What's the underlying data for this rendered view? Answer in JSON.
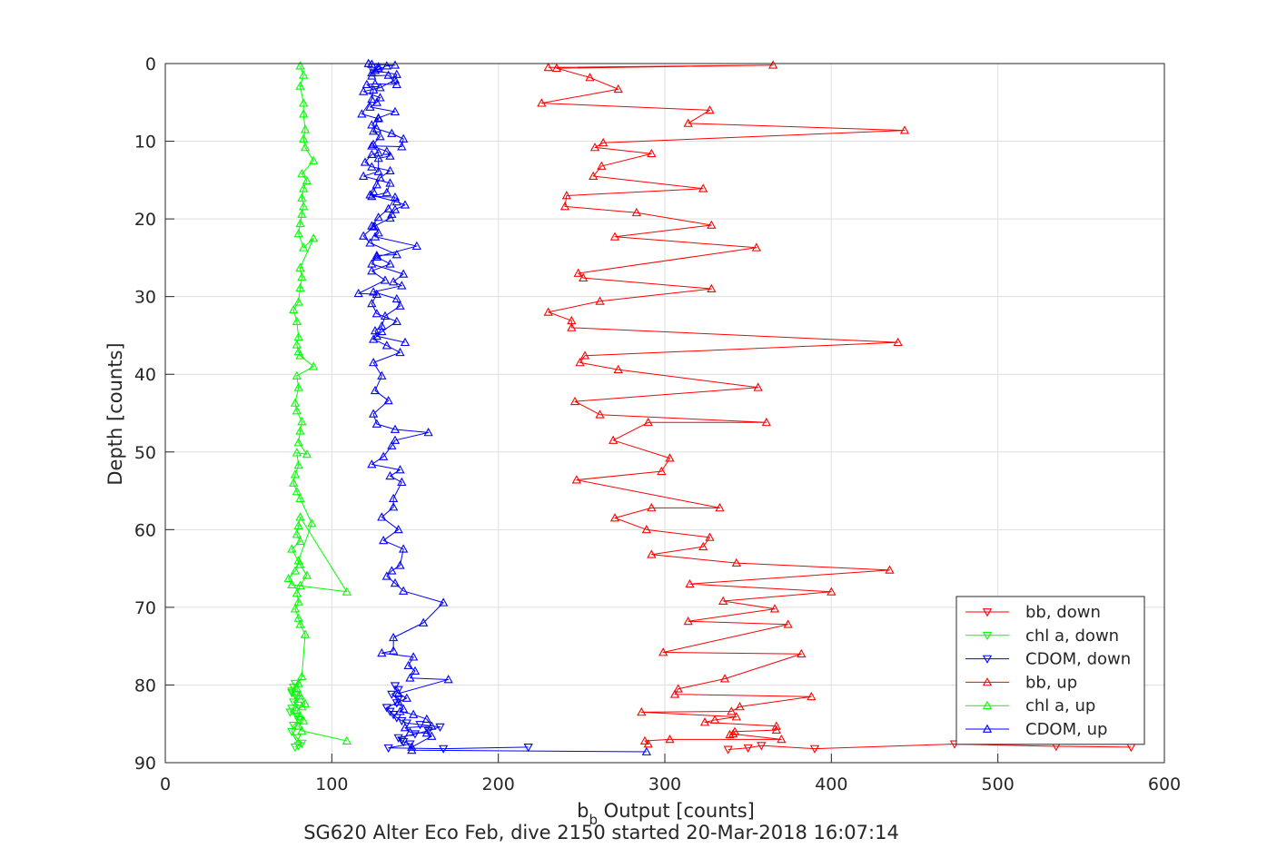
{
  "chart_data": {
    "type": "line",
    "xlabel_main": "b",
    "xlabel_sub": "b",
    "xlabel_rest": " Output [counts]",
    "ylabel": "Depth [counts]",
    "subtitle": "SG620 Alter Eco Feb, dive 2150 started 20-Mar-2018 16:07:14",
    "xlim": [
      0,
      600
    ],
    "ylim": [
      0,
      90
    ],
    "y_reversed": true,
    "grid": true,
    "legend_position": "bottom-right",
    "x_ticks": [
      "0",
      "100",
      "200",
      "300",
      "400",
      "500",
      "600"
    ],
    "y_ticks": [
      "0",
      "10",
      "20",
      "30",
      "40",
      "50",
      "60",
      "70",
      "80",
      "90"
    ],
    "series": [
      {
        "name": "bb, down",
        "color": "#ff0000",
        "marker": "triangle-down",
        "x": [
          580,
          535,
          474,
          390,
          358,
          350,
          338
        ],
        "y": [
          88,
          87.9,
          87.6,
          88.2,
          87.8,
          88.1,
          88.3
        ]
      },
      {
        "name": "chl a, down",
        "color": "#00ff00",
        "marker": "triangle-down",
        "x": [
          78,
          80,
          82,
          79,
          76,
          77,
          80,
          79,
          75,
          76,
          80,
          77,
          79,
          78,
          76,
          77,
          76,
          78
        ],
        "y": [
          88,
          87.8,
          87.5,
          86.8,
          86,
          85.2,
          84.5,
          84,
          83.5,
          83,
          82.6,
          82.2,
          81.7,
          81.2,
          80.8,
          80.3,
          81,
          79.8
        ]
      },
      {
        "name": "CDOM, down",
        "color": "#0000ff",
        "marker": "triangle-down",
        "x": [
          218,
          167,
          134,
          147,
          143,
          142,
          140,
          150,
          158,
          165,
          153,
          145,
          142,
          139,
          137,
          135,
          133,
          139,
          140,
          136,
          140,
          138
        ],
        "y": [
          88,
          88.2,
          88.1,
          87.6,
          87.3,
          87.1,
          86.8,
          86.3,
          85.9,
          85.4,
          85.1,
          84.9,
          84.6,
          84.2,
          83.8,
          83.4,
          82.9,
          82.3,
          81.8,
          81.2,
          80.6,
          80.1
        ]
      },
      {
        "name": "bb, up",
        "color": "#ff0000",
        "marker": "triangle-up",
        "x": [
          290,
          288,
          303,
          370,
          341,
          339,
          342,
          367,
          367,
          324,
          330,
          343,
          286,
          340,
          345,
          388,
          306,
          308,
          336,
          382,
          299,
          374,
          314,
          366,
          335,
          400,
          315,
          435,
          343,
          292,
          323,
          327,
          289,
          270,
          292,
          333,
          247,
          298,
          303,
          269,
          290,
          361,
          261,
          246,
          356,
          272,
          249,
          252,
          440,
          244,
          244,
          230,
          261,
          328,
          251,
          248,
          355,
          270,
          328,
          283,
          240,
          241,
          323,
          257,
          262,
          292,
          258,
          263,
          444,
          314,
          327,
          226,
          272,
          255,
          235,
          365,
          230
        ],
        "y": [
          87.6,
          87.2,
          87,
          87,
          86.3,
          86.4,
          86,
          85.8,
          85.3,
          84.8,
          84.5,
          84.1,
          83.5,
          83.4,
          82.8,
          81.5,
          81.2,
          80.5,
          79.2,
          76,
          75.8,
          72.2,
          71.8,
          70.2,
          69.2,
          68,
          67,
          65.2,
          64.3,
          63.2,
          62.2,
          61,
          60,
          58.5,
          57.2,
          57.2,
          53.6,
          52.5,
          50.8,
          48.5,
          46.2,
          46.2,
          45.2,
          43.5,
          41.7,
          39.4,
          38.5,
          37.6,
          35.9,
          34,
          33.1,
          32,
          30.6,
          29,
          27.6,
          27,
          23.7,
          22.3,
          20.8,
          19.2,
          18.4,
          17,
          16.1,
          14.5,
          13.2,
          11.6,
          10.8,
          10.2,
          8.6,
          7.7,
          6,
          5.1,
          3.3,
          1.8,
          0.6,
          0.2,
          0.5
        ]
      },
      {
        "name": "chl a, up",
        "color": "#00ff00",
        "marker": "triangle-up",
        "x": [
          109,
          82,
          80,
          83,
          81,
          79,
          82,
          84,
          81,
          79,
          80,
          82,
          84,
          81,
          80,
          78,
          80,
          79,
          81,
          85,
          81,
          76,
          81,
          79,
          80,
          81,
          109,
          76,
          74,
          78,
          80,
          88,
          81,
          79,
          77,
          78,
          80,
          79,
          85,
          80,
          81,
          82,
          79,
          78,
          80,
          79,
          89,
          81,
          80,
          79,
          80,
          79,
          77,
          80,
          81,
          82,
          81,
          89,
          83,
          80,
          81,
          82,
          83,
          82,
          83,
          85,
          82,
          89,
          84,
          83,
          84,
          83,
          83,
          81,
          83,
          81
        ],
        "y": [
          87.2,
          85.9,
          85.3,
          84.6,
          84,
          83.3,
          82.8,
          82.4,
          81.4,
          80.5,
          79.8,
          78.9,
          73.5,
          72.2,
          71.4,
          70.2,
          69.3,
          68.2,
          67.2,
          65.9,
          64.5,
          62.5,
          61.5,
          60.6,
          59.5,
          58.4,
          68,
          67.1,
          66.3,
          65.3,
          64,
          59.2,
          56,
          55.1,
          54,
          52.9,
          51.7,
          50.1,
          50.3,
          48.8,
          47.3,
          46.1,
          44.7,
          43.7,
          41.7,
          40.2,
          39,
          37.6,
          37.1,
          36.2,
          35.2,
          33.2,
          31.7,
          30.7,
          28.9,
          27.5,
          26.3,
          22.5,
          23.7,
          21.9,
          20.6,
          19.4,
          18.4,
          17.3,
          16.1,
          15.1,
          14.2,
          12.5,
          10.8,
          9.7,
          8.5,
          6.5,
          5.1,
          2.9,
          1.5,
          0.3
        ]
      },
      {
        "name": "CDOM, up",
        "color": "#0000ff",
        "marker": "triangle-up",
        "x": [
          289,
          148,
          148,
          160,
          157,
          147,
          144,
          160,
          157,
          149,
          141,
          143,
          140,
          145,
          140,
          170,
          147,
          150,
          146,
          149,
          130,
          137,
          137,
          155,
          167,
          143,
          138,
          133,
          136,
          141,
          143,
          131,
          140,
          130,
          137,
          137,
          142,
          135,
          141,
          124,
          131,
          136,
          138,
          158,
          138,
          127,
          125,
          134,
          126,
          130,
          125,
          141,
          133,
          125,
          130,
          139,
          127,
          124,
          127,
          116,
          132,
          124,
          135,
          127,
          151,
          126,
          128,
          126,
          124,
          128,
          134,
          138,
          124,
          133,
          135,
          119,
          128,
          128,
          135,
          133,
          124,
          142,
          143,
          136,
          127,
          124,
          128,
          138,
          123,
          127,
          129,
          119,
          129,
          138,
          139,
          126,
          128,
          124,
          128,
          133,
          138,
          124,
          122,
          124,
          134,
          139,
          126,
          121,
          125,
          124,
          118,
          128,
          125,
          129,
          125,
          128,
          124,
          120,
          124,
          135,
          129,
          127,
          125,
          123,
          139,
          144,
          138,
          136,
          135,
          125,
          119,
          123,
          139,
          127,
          124,
          143,
          137,
          142,
          125,
          139,
          141,
          132,
          130,
          126,
          127,
          144
        ],
        "y": [
          88.6,
          88.4,
          88,
          86.6,
          86.2,
          86.1,
          85.5,
          85.3,
          84.4,
          83.8,
          83.4,
          83.1,
          82.2,
          81.7,
          81.1,
          79.3,
          79.1,
          78.2,
          77.5,
          76.4,
          75.9,
          75.6,
          73.9,
          72,
          69.4,
          67.9,
          66.9,
          66,
          65.3,
          64.6,
          62.5,
          61.4,
          60,
          58.4,
          57.1,
          56,
          53.9,
          53.1,
          52.3,
          51.6,
          50.6,
          49.2,
          48.5,
          47.5,
          47.1,
          46.4,
          45.1,
          43.4,
          42.1,
          40.2,
          38.5,
          37.2,
          36.3,
          35.5,
          34.5,
          33.2,
          32.2,
          30.9,
          29.7,
          29.6,
          27.9,
          26.7,
          25.8,
          24.9,
          23.5,
          22.3,
          21.8,
          21,
          20.9,
          19.8,
          18.7,
          17.2,
          17.1,
          16.6,
          15.4,
          14.5,
          13.9,
          12.2,
          11.9,
          11.3,
          10.6,
          10.7,
          9.7,
          9,
          8.4,
          7.9,
          7,
          6.2,
          5.6,
          5,
          4.4,
          3.6,
          3.1,
          2.1,
          1.4,
          0.9,
          0.4,
          1.2,
          0.7,
          0.3,
          0.2,
          0.1,
          0,
          1.6,
          1.5,
          2.7,
          2.6,
          2.7,
          3.4,
          4.6,
          6.5,
          7.1,
          8.7,
          9.4,
          10.4,
          11.5,
          11.7,
          12.7,
          13.3,
          13.8,
          14.7,
          15.6,
          16.5,
          16.9,
          17.8,
          18.2,
          18.8,
          19.4,
          19.9,
          21,
          22.2,
          23.1,
          24.6,
          24.7,
          25.8,
          27.1,
          28.1,
          28.6,
          29.4,
          30.3,
          31.2,
          32.5,
          33.8,
          34.4,
          35.1,
          35.9
        ]
      }
    ]
  }
}
